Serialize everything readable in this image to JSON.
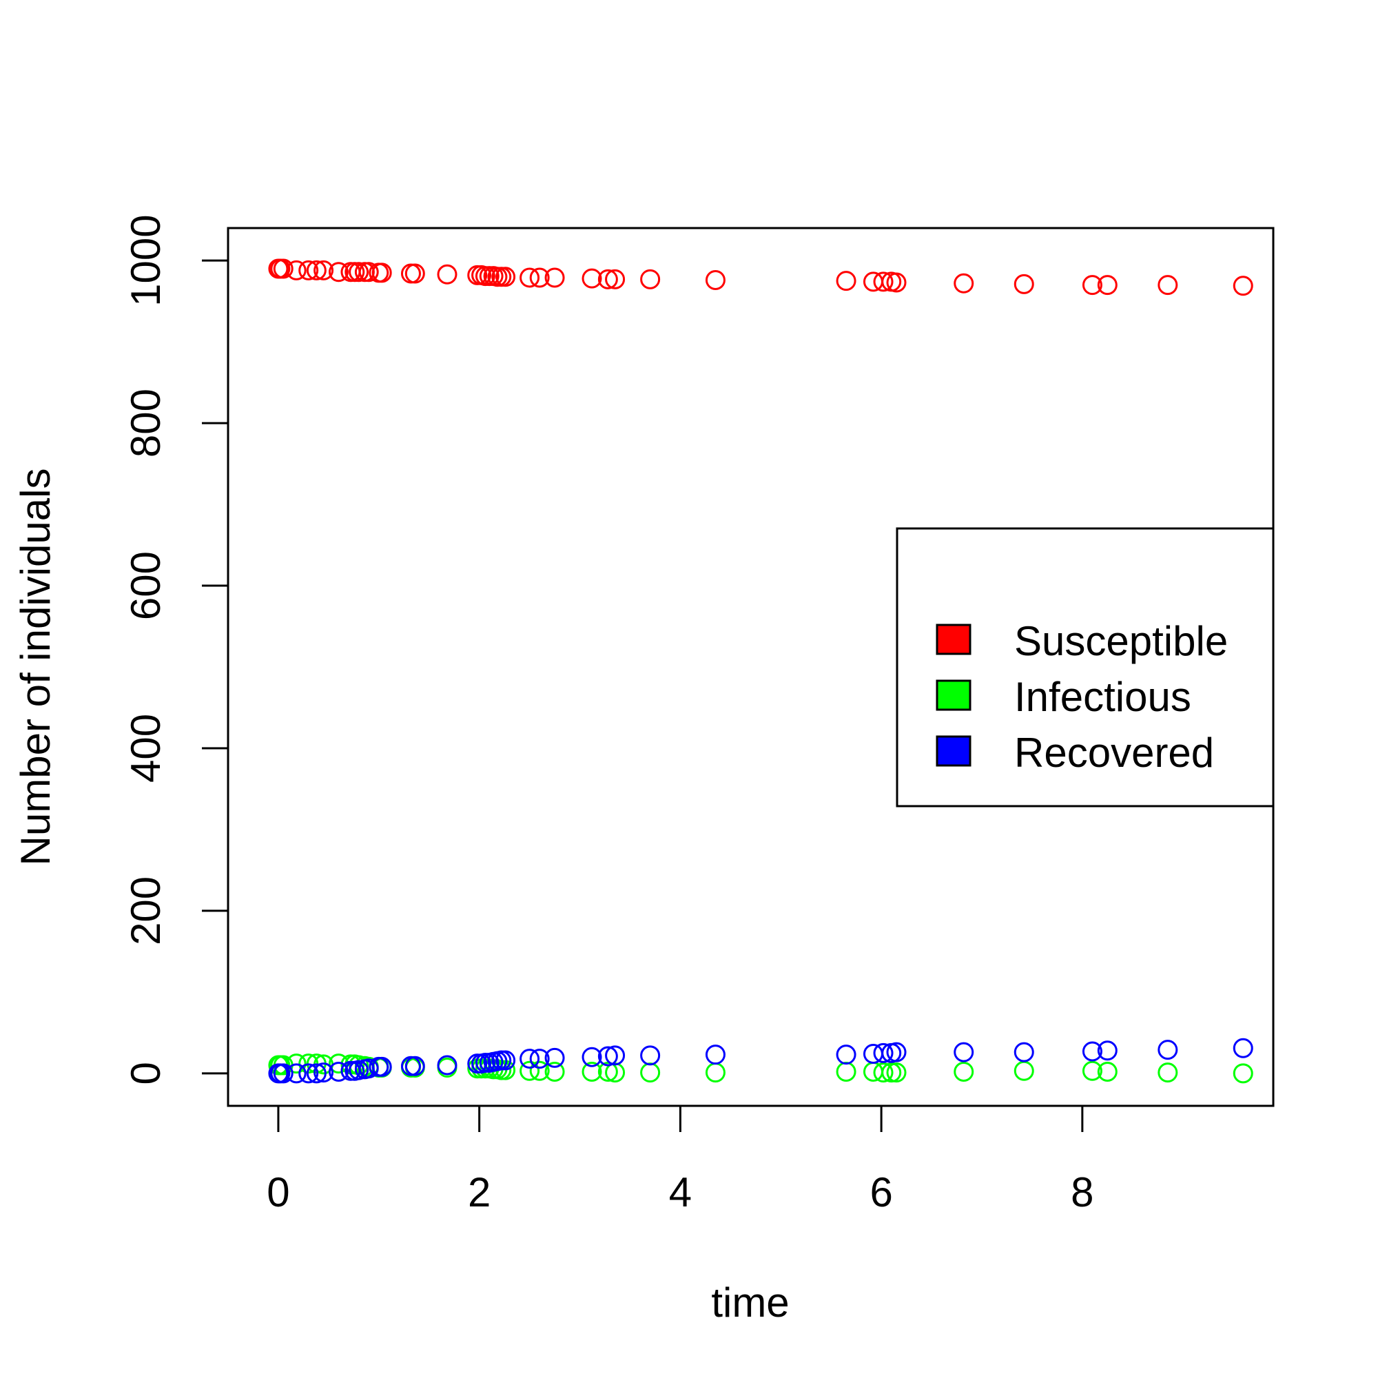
{
  "chart_data": {
    "type": "scatter",
    "title": "",
    "xlabel": "time",
    "ylabel": "Number of individuals",
    "xlim": [
      -0.5,
      9.9
    ],
    "ylim": [
      -40,
      1040
    ],
    "xticks": [
      "0",
      "2",
      "4",
      "6",
      "8"
    ],
    "yticks": [
      "0",
      "200",
      "400",
      "600",
      "800",
      "1000"
    ],
    "legend_position": "right",
    "grid": false,
    "marker": "open-circle",
    "series": [
      {
        "name": "Susceptible",
        "color": "#ff0000",
        "x": [
          0.0,
          0.02,
          0.05,
          0.18,
          0.3,
          0.38,
          0.45,
          0.6,
          0.72,
          0.76,
          0.8,
          0.86,
          0.9,
          1.0,
          1.03,
          1.32,
          1.36,
          1.68,
          1.98,
          2.02,
          2.06,
          2.1,
          2.14,
          2.18,
          2.22,
          2.26,
          2.5,
          2.6,
          2.75,
          3.12,
          3.28,
          3.35,
          3.7,
          4.35,
          5.65,
          5.92,
          6.02,
          6.1,
          6.15,
          6.82,
          7.42,
          8.1,
          8.25,
          8.85,
          9.6
        ],
        "y": [
          990,
          990,
          990,
          988,
          988,
          988,
          988,
          986,
          986,
          986,
          986,
          986,
          986,
          985,
          985,
          984,
          984,
          983,
          982,
          982,
          981,
          981,
          981,
          980,
          980,
          980,
          979,
          979,
          979,
          978,
          977,
          977,
          977,
          976,
          975,
          974,
          974,
          974,
          973,
          972,
          971,
          970,
          970,
          970,
          969
        ]
      },
      {
        "name": "Infectious",
        "color": "#00ff00",
        "x": [
          0.0,
          0.02,
          0.05,
          0.18,
          0.3,
          0.38,
          0.45,
          0.6,
          0.72,
          0.76,
          0.8,
          0.86,
          0.9,
          1.0,
          1.03,
          1.32,
          1.36,
          1.68,
          1.98,
          2.02,
          2.06,
          2.1,
          2.14,
          2.18,
          2.22,
          2.26,
          2.5,
          2.6,
          2.75,
          3.12,
          3.28,
          3.35,
          3.7,
          4.35,
          5.65,
          5.92,
          6.02,
          6.1,
          6.15,
          6.82,
          7.42,
          8.1,
          8.25,
          8.85,
          9.6
        ],
        "y": [
          10,
          10,
          10,
          12,
          12,
          12,
          11,
          12,
          11,
          11,
          10,
          9,
          8,
          7,
          7,
          7,
          7,
          7,
          6,
          6,
          6,
          6,
          5,
          5,
          4,
          4,
          3,
          3,
          2,
          2,
          2,
          1,
          1,
          1,
          2,
          2,
          1,
          1,
          1,
          2,
          3,
          3,
          2,
          1,
          0
        ]
      },
      {
        "name": "Recovered",
        "color": "#0000ff",
        "x": [
          0.0,
          0.02,
          0.05,
          0.18,
          0.3,
          0.38,
          0.45,
          0.6,
          0.72,
          0.76,
          0.8,
          0.86,
          0.9,
          1.0,
          1.03,
          1.32,
          1.36,
          1.68,
          1.98,
          2.02,
          2.06,
          2.1,
          2.14,
          2.18,
          2.22,
          2.26,
          2.5,
          2.6,
          2.75,
          3.12,
          3.28,
          3.35,
          3.7,
          4.35,
          5.65,
          5.92,
          6.02,
          6.1,
          6.15,
          6.82,
          7.42,
          8.1,
          8.25,
          8.85,
          9.6
        ],
        "y": [
          0,
          0,
          0,
          0,
          0,
          0,
          1,
          2,
          3,
          3,
          4,
          5,
          6,
          8,
          8,
          9,
          9,
          10,
          12,
          12,
          13,
          13,
          14,
          15,
          16,
          16,
          18,
          18,
          19,
          20,
          21,
          22,
          22,
          23,
          23,
          24,
          25,
          25,
          26,
          26,
          26,
          27,
          28,
          29,
          31
        ]
      }
    ]
  }
}
